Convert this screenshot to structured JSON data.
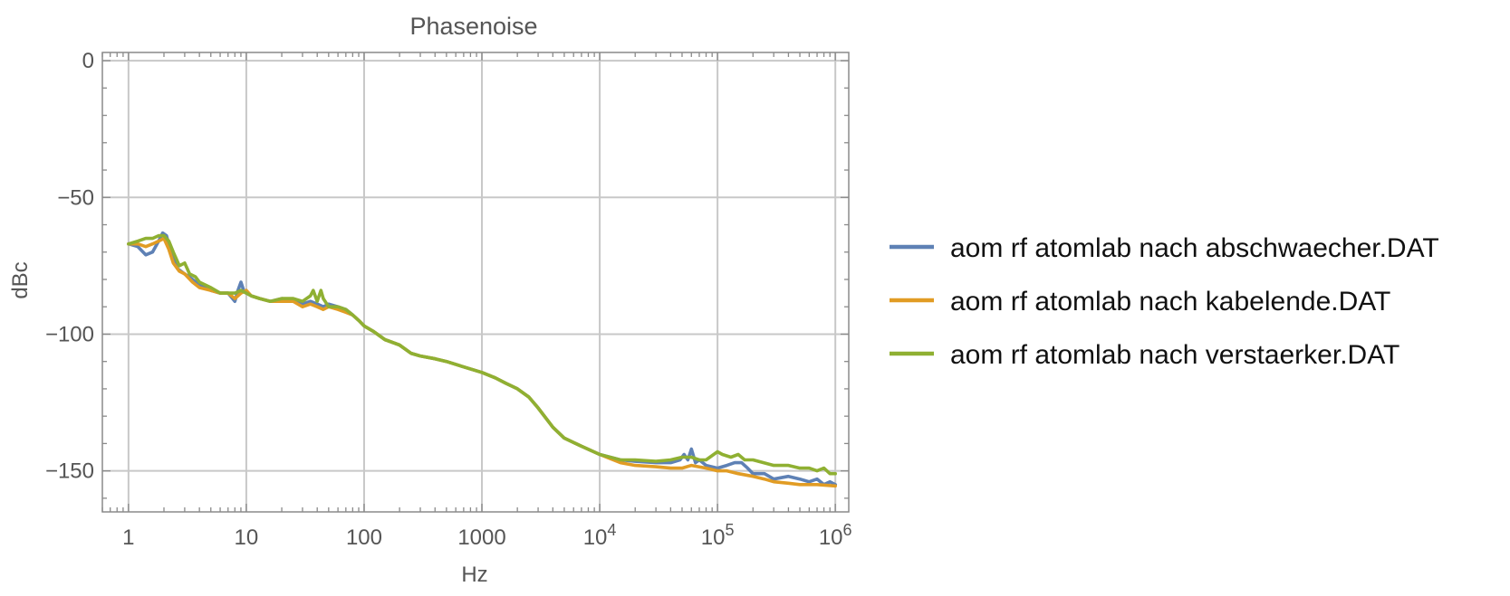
{
  "chart_data": {
    "type": "line",
    "title": "Phasenoise",
    "xlabel": "Hz",
    "ylabel": "dBc",
    "x_scale": "log",
    "xlim": [
      0.6,
      1300000
    ],
    "ylim": [
      -165,
      3
    ],
    "grid": true,
    "legend_position": "right",
    "x_ticks": [
      {
        "value": 1,
        "base": "1",
        "exp": ""
      },
      {
        "value": 10,
        "base": "10",
        "exp": ""
      },
      {
        "value": 100,
        "base": "100",
        "exp": ""
      },
      {
        "value": 1000,
        "base": "1000",
        "exp": ""
      },
      {
        "value": 10000,
        "base": "10",
        "exp": "4"
      },
      {
        "value": 100000,
        "base": "10",
        "exp": "5"
      },
      {
        "value": 1000000,
        "base": "10",
        "exp": "6"
      }
    ],
    "y_ticks": [
      {
        "value": 0,
        "label": "0"
      },
      {
        "value": -50,
        "label": "−50"
      },
      {
        "value": -100,
        "label": "−100"
      },
      {
        "value": -150,
        "label": "−150"
      }
    ],
    "series": [
      {
        "name": "aom rf atomlab nach abschwaecher.DAT",
        "color": "#5E81B5",
        "x": [
          1,
          1.2,
          1.4,
          1.6,
          1.8,
          1.95,
          2.1,
          2.3,
          2.6,
          3,
          3.5,
          4,
          5,
          6,
          7,
          8,
          8.5,
          9,
          9.5,
          10,
          11,
          13,
          16,
          20,
          25,
          30,
          35,
          40,
          45,
          50,
          60,
          70,
          80,
          90,
          100,
          120,
          150,
          200,
          250,
          300,
          400,
          500,
          700,
          1000,
          1300,
          1600,
          2000,
          2500,
          3000,
          4000,
          5000,
          7000,
          10000,
          15000,
          20000,
          30000,
          40000,
          48000,
          52000,
          56000,
          60000,
          65000,
          70000,
          80000,
          100000,
          120000,
          140000,
          160000,
          180000,
          200000,
          250000,
          300000,
          400000,
          500000,
          600000,
          700000,
          800000,
          900000,
          1000000
        ],
        "y": [
          -67,
          -68,
          -71,
          -70,
          -66,
          -63,
          -64,
          -70,
          -76,
          -78,
          -80,
          -82,
          -84,
          -85,
          -85,
          -88,
          -84,
          -81,
          -84,
          -85,
          -86,
          -87,
          -88,
          -87,
          -88,
          -89,
          -88,
          -89,
          -90,
          -89,
          -90,
          -91,
          -93,
          -95,
          -97,
          -99,
          -102,
          -104,
          -107,
          -108,
          -109,
          -110,
          -112,
          -114,
          -116,
          -118,
          -120,
          -123,
          -127,
          -134,
          -138,
          -141,
          -144,
          -146,
          -146.5,
          -147,
          -147,
          -146,
          -144,
          -146,
          -142,
          -147,
          -146,
          -148,
          -149,
          -148,
          -147,
          -147,
          -149,
          -151,
          -151,
          -153,
          -152,
          -153,
          -154,
          -153,
          -155,
          -154,
          -155
        ]
      },
      {
        "name": "aom rf atomlab nach kabelende.DAT",
        "color": "#E19C24",
        "x": [
          1,
          1.2,
          1.4,
          1.6,
          1.8,
          2,
          2.2,
          2.4,
          2.7,
          3,
          3.5,
          4,
          5,
          6,
          7,
          8,
          9,
          10,
          11,
          13,
          16,
          20,
          25,
          30,
          35,
          40,
          45,
          50,
          60,
          70,
          80,
          90,
          100,
          120,
          150,
          200,
          250,
          300,
          400,
          500,
          700,
          1000,
          1300,
          1600,
          2000,
          2500,
          3000,
          4000,
          5000,
          7000,
          10000,
          15000,
          20000,
          30000,
          40000,
          50000,
          60000,
          80000,
          100000,
          120000,
          150000,
          200000,
          250000,
          300000,
          400000,
          500000,
          700000,
          1000000
        ],
        "y": [
          -67,
          -67,
          -68,
          -67,
          -66,
          -65,
          -69,
          -74,
          -77,
          -78,
          -81,
          -83,
          -84,
          -85,
          -85,
          -87,
          -85,
          -84,
          -86,
          -87,
          -88,
          -88,
          -88,
          -90,
          -89,
          -90,
          -91,
          -90,
          -91,
          -92,
          -93,
          -95,
          -97,
          -99,
          -102,
          -104,
          -107,
          -108,
          -109,
          -110,
          -112,
          -114,
          -116,
          -118,
          -120,
          -123,
          -127,
          -134,
          -138,
          -141,
          -144,
          -147,
          -148,
          -148.5,
          -149,
          -149,
          -148,
          -149,
          -150,
          -150,
          -151,
          -152,
          -153,
          -154,
          -154.5,
          -155,
          -155,
          -155.5
        ]
      },
      {
        "name": "aom rf atomlab nach verstaerker.DAT",
        "color": "#8FB032",
        "x": [
          1,
          1.2,
          1.4,
          1.6,
          1.8,
          2,
          2.2,
          2.4,
          2.7,
          3,
          3.3,
          3.7,
          4,
          5,
          6,
          7,
          8,
          9,
          10,
          11,
          13,
          16,
          20,
          25,
          30,
          35,
          37,
          40,
          43,
          45,
          50,
          60,
          70,
          80,
          90,
          100,
          120,
          150,
          200,
          250,
          300,
          400,
          500,
          700,
          1000,
          1300,
          1600,
          2000,
          2500,
          3000,
          4000,
          5000,
          7000,
          10000,
          15000,
          20000,
          30000,
          40000,
          50000,
          55000,
          60000,
          70000,
          80000,
          100000,
          110000,
          130000,
          150000,
          170000,
          200000,
          300000,
          400000,
          500000,
          600000,
          700000,
          800000,
          900000,
          1000000
        ],
        "y": [
          -67,
          -66,
          -65,
          -65,
          -64,
          -64,
          -66,
          -70,
          -75,
          -74,
          -78,
          -79,
          -81,
          -83,
          -85,
          -85,
          -85,
          -84,
          -85,
          -86,
          -87,
          -88,
          -87,
          -87,
          -88,
          -86,
          -84,
          -88,
          -84,
          -87,
          -90,
          -90,
          -91,
          -93,
          -95,
          -97,
          -99,
          -102,
          -104,
          -107,
          -108,
          -109,
          -110,
          -112,
          -114,
          -116,
          -118,
          -120,
          -123,
          -127,
          -134,
          -138,
          -141,
          -144,
          -146,
          -146,
          -146.5,
          -146,
          -145,
          -145,
          -145,
          -146,
          -146,
          -143,
          -144,
          -145,
          -144,
          -146,
          -146,
          -148,
          -148,
          -149,
          -149,
          -150,
          -149,
          -151,
          -151
        ]
      }
    ]
  }
}
